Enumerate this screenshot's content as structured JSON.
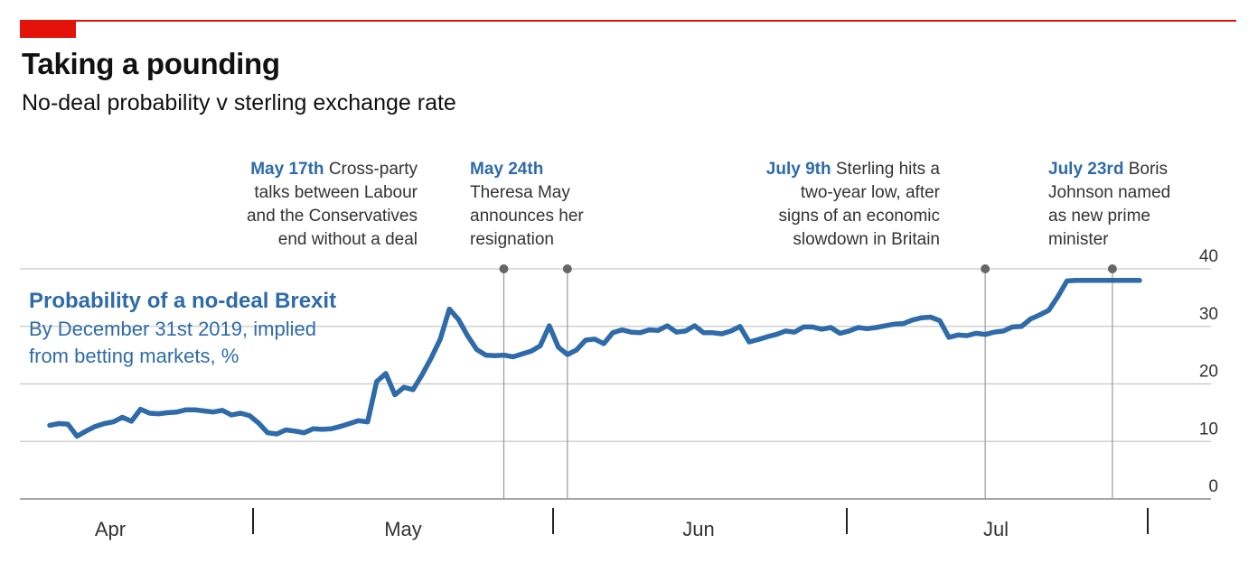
{
  "header": {
    "title": "Taking a pounding",
    "subtitle": "No-deal probability v sterling exchange rate"
  },
  "legend": {
    "series_name": "Probability of a no-deal Brexit",
    "description_line1": "By December 31st 2019, implied",
    "description_line2": "from betting markets, %"
  },
  "annotations": [
    {
      "date_label": "May 17th",
      "lines": [
        "Cross-party",
        "talks between Labour",
        "and the Conservatives",
        "end without a deal"
      ]
    },
    {
      "date_label": "May 24th",
      "lines": [
        "",
        "Theresa May",
        "announces her",
        "resignation"
      ]
    },
    {
      "date_label": "July 9th",
      "lines": [
        "Sterling hits a",
        "two-year low, after",
        "signs of an economic",
        "slowdown in Britain"
      ]
    },
    {
      "date_label": "July 23rd",
      "lines": [
        "Boris",
        "Johnson named",
        "as new prime",
        "minister"
      ]
    }
  ],
  "colors": {
    "accent": "#e3120b",
    "series": "#2e6ba8",
    "grid": "#cccccc",
    "text": "#333333"
  },
  "chart_data": {
    "type": "line",
    "ylim": [
      0,
      40
    ],
    "y_ticks": [
      0,
      10,
      20,
      30,
      40
    ],
    "x_ticks": [
      "Apr",
      "May",
      "Jun",
      "Jul"
    ],
    "grid": true,
    "y_axis_side": "right",
    "series": [
      {
        "name": "Probability of a no-deal Brexit",
        "x": [
          "2019-03-28",
          "2019-03-29",
          "2019-03-30",
          "2019-03-31",
          "2019-04-01",
          "2019-04-02",
          "2019-04-03",
          "2019-04-04",
          "2019-04-05",
          "2019-04-06",
          "2019-04-07",
          "2019-04-08",
          "2019-04-09",
          "2019-04-10",
          "2019-04-11",
          "2019-04-12",
          "2019-04-13",
          "2019-04-14",
          "2019-04-15",
          "2019-04-16",
          "2019-04-17",
          "2019-04-18",
          "2019-04-19",
          "2019-04-20",
          "2019-04-21",
          "2019-04-22",
          "2019-04-23",
          "2019-04-24",
          "2019-04-25",
          "2019-04-26",
          "2019-04-27",
          "2019-04-28",
          "2019-04-29",
          "2019-04-30",
          "2019-05-01",
          "2019-05-02",
          "2019-05-03",
          "2019-05-04",
          "2019-05-05",
          "2019-05-06",
          "2019-05-07",
          "2019-05-08",
          "2019-05-09",
          "2019-05-10",
          "2019-05-11",
          "2019-05-12",
          "2019-05-13",
          "2019-05-14",
          "2019-05-15",
          "2019-05-16",
          "2019-05-17",
          "2019-05-18",
          "2019-05-19",
          "2019-05-20",
          "2019-05-21",
          "2019-05-22",
          "2019-05-23",
          "2019-05-24",
          "2019-05-25",
          "2019-05-26",
          "2019-05-27",
          "2019-05-28",
          "2019-05-29",
          "2019-05-30",
          "2019-05-31",
          "2019-06-01",
          "2019-06-02",
          "2019-06-03",
          "2019-06-04",
          "2019-06-05",
          "2019-06-06",
          "2019-06-07",
          "2019-06-08",
          "2019-06-09",
          "2019-06-10",
          "2019-06-11",
          "2019-06-12",
          "2019-06-13",
          "2019-06-14",
          "2019-06-15",
          "2019-06-16",
          "2019-06-17",
          "2019-06-18",
          "2019-06-19",
          "2019-06-20",
          "2019-06-21",
          "2019-06-22",
          "2019-06-23",
          "2019-06-24",
          "2019-06-25",
          "2019-06-26",
          "2019-06-27",
          "2019-06-28",
          "2019-06-29",
          "2019-06-30",
          "2019-07-01",
          "2019-07-02",
          "2019-07-03",
          "2019-07-04",
          "2019-07-05",
          "2019-07-06",
          "2019-07-07",
          "2019-07-08",
          "2019-07-09",
          "2019-07-10",
          "2019-07-11",
          "2019-07-12",
          "2019-07-13",
          "2019-07-14",
          "2019-07-15",
          "2019-07-16",
          "2019-07-17",
          "2019-07-18",
          "2019-07-19",
          "2019-07-20",
          "2019-07-21",
          "2019-07-22",
          "2019-07-23",
          "2019-07-24",
          "2019-07-25",
          "2019-07-26",
          "2019-07-27"
        ],
        "values": [
          12.8,
          13.1,
          13.0,
          10.9,
          11.8,
          12.6,
          13.1,
          13.4,
          14.2,
          13.5,
          15.6,
          14.9,
          14.8,
          15.0,
          15.1,
          15.5,
          15.5,
          15.3,
          15.1,
          15.4,
          14.6,
          14.9,
          14.5,
          13.2,
          11.5,
          11.3,
          12.0,
          11.8,
          11.5,
          12.2,
          12.1,
          12.2,
          12.6,
          13.1,
          13.6,
          13.4,
          20.4,
          21.8,
          18.1,
          19.4,
          19.0,
          21.6,
          24.5,
          27.8,
          33.0,
          31.2,
          28.4,
          26.0,
          25.0,
          24.9,
          25.0,
          24.7,
          25.2,
          25.7,
          26.6,
          30.1,
          26.4,
          25.1,
          25.9,
          27.6,
          27.8,
          27.0,
          28.9,
          29.4,
          29.0,
          28.9,
          29.4,
          29.3,
          30.1,
          29.0,
          29.2,
          30.1,
          28.9,
          28.9,
          28.7,
          29.2,
          30.0,
          27.3,
          27.7,
          28.2,
          28.6,
          29.2,
          29.0,
          29.9,
          29.9,
          29.5,
          29.8,
          28.8,
          29.2,
          29.8,
          29.6,
          29.8,
          30.1,
          30.4,
          30.5,
          31.1,
          31.5,
          31.6,
          31.0,
          28.1,
          28.5,
          28.4,
          28.8,
          28.6,
          29.0,
          29.2,
          29.9,
          30.0,
          31.3,
          32.0,
          32.8,
          35.2,
          37.9,
          38.0,
          38.0,
          38.0,
          38.0,
          38.0,
          38.0,
          38.0,
          38.0,
          38.0
        ]
      }
    ]
  }
}
